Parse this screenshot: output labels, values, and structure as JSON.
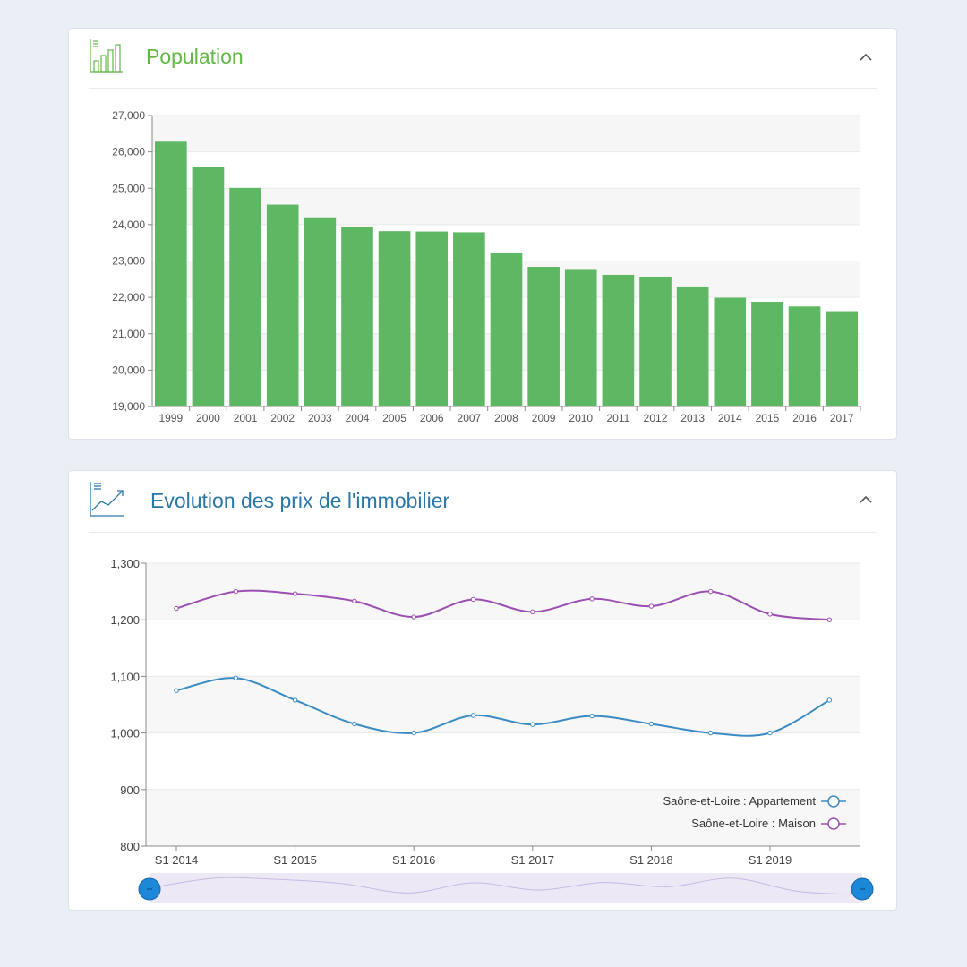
{
  "colors": {
    "population_accent": "#62b746",
    "bar": "#5eb763",
    "prix_accent": "#2a77a8",
    "appartement": "#3a8bc3",
    "maison": "#9b4fb3",
    "handle": "#1e88d8"
  },
  "icons": {
    "population": "bar-chart-icon",
    "prix": "line-chart-icon",
    "collapse": "chevron-up-icon"
  },
  "population": {
    "title": "Population"
  },
  "prix": {
    "title": "Evolution des prix de l'immobilier"
  },
  "chart_data": [
    {
      "type": "bar",
      "title": "",
      "categories": [
        "1999",
        "2000",
        "2001",
        "2002",
        "2003",
        "2004",
        "2005",
        "2006",
        "2007",
        "2008",
        "2009",
        "2010",
        "2011",
        "2012",
        "2013",
        "2014",
        "2015",
        "2016",
        "2017"
      ],
      "values": [
        26280,
        25590,
        25010,
        24550,
        24200,
        23950,
        23820,
        23810,
        23790,
        23210,
        22840,
        22780,
        22620,
        22570,
        22300,
        21990,
        21880,
        21750,
        21620
      ],
      "ylim": [
        19000,
        27000
      ],
      "yticks": [
        "19,000",
        "20,000",
        "21,000",
        "22,000",
        "23,000",
        "24,000",
        "25,000",
        "26,000",
        "27,000"
      ],
      "grid": true
    },
    {
      "type": "line",
      "title": "",
      "x": [
        "S1 2014",
        "S2 2014",
        "S1 2015",
        "S2 2015",
        "S1 2016",
        "S2 2016",
        "S1 2017",
        "S2 2017",
        "S1 2018",
        "S2 2018",
        "S1 2019",
        "S2 2019"
      ],
      "xticks": [
        "S1 2014",
        "S1 2015",
        "S1 2016",
        "S1 2017",
        "S1 2018",
        "S1 2019"
      ],
      "series": [
        {
          "name": "Saône-et-Loire : Appartement",
          "values": [
            1075,
            1097,
            1058,
            1016,
            1000,
            1031,
            1015,
            1030,
            1016,
            1000,
            1000,
            1058
          ]
        },
        {
          "name": "Saône-et-Loire : Maison",
          "values": [
            1220,
            1250,
            1246,
            1233,
            1205,
            1236,
            1214,
            1237,
            1224,
            1250,
            1210,
            1200
          ]
        }
      ],
      "ylim": [
        800,
        1300
      ],
      "yticks": [
        "800",
        "900",
        "1,000",
        "1,100",
        "1,200",
        "1,300"
      ],
      "legend": "bottom-right",
      "grid": true,
      "navigator": true
    }
  ]
}
